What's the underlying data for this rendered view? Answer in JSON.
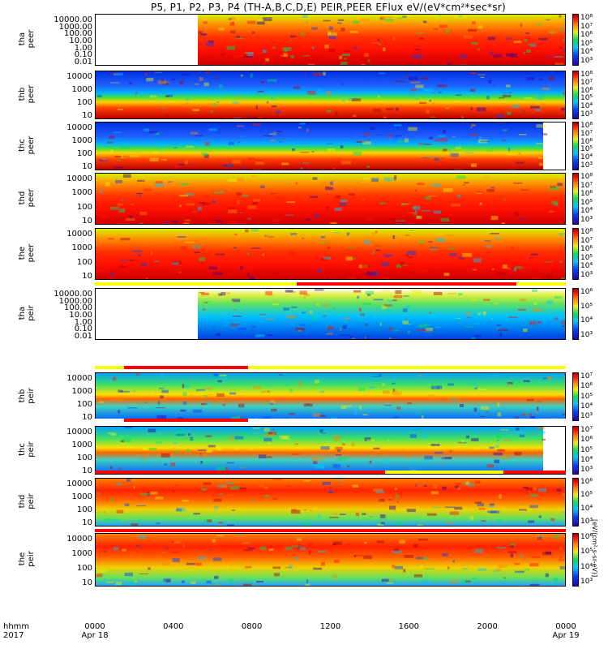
{
  "title": "P5, P1, P2, P3, P4 (TH-A,B,C,D,E) PEIR,PEER EFlux eV/(eV*cm²*sec*sr)",
  "x_axis": {
    "row1_label": "hhmm",
    "row2_label": "2017",
    "ticks": [
      {
        "time": "0000",
        "date": "Apr 18"
      },
      {
        "time": "0400",
        "date": ""
      },
      {
        "time": "0800",
        "date": ""
      },
      {
        "time": "1200",
        "date": ""
      },
      {
        "time": "1600",
        "date": ""
      },
      {
        "time": "2000",
        "date": ""
      },
      {
        "time": "0000",
        "date": "Apr 19"
      }
    ]
  },
  "colorbar_unit": "[eV/(cm²-s-sr-eV)]",
  "chart_data": {
    "type": "heatmap",
    "x_range_hours": [
      0,
      24
    ],
    "colormap": [
      "#2b00a8",
      "#0040ff",
      "#00c8ff",
      "#00e060",
      "#f0f000",
      "#ff8000",
      "#ff1000",
      "#b00000"
    ],
    "panels": [
      {
        "probe": "tha",
        "species": "peer",
        "y_ticks": [
          "10000.00",
          "1000.00",
          "100.00",
          "10.00",
          "1.00",
          "0.10",
          "0.01"
        ],
        "cb_ticks": [
          "10⁸",
          "10⁷",
          "10⁶",
          "10⁵",
          "10⁴",
          "10³"
        ],
        "data_start_h": 5.2,
        "data_end_h": 24
      },
      {
        "probe": "thb",
        "species": "peer",
        "y_ticks": [
          "10000",
          "1000",
          "100",
          "10"
        ],
        "cb_ticks": [
          "10⁸",
          "10⁷",
          "10⁶",
          "10⁵",
          "10⁴",
          "10³"
        ],
        "data_start_h": 0,
        "data_end_h": 24
      },
      {
        "probe": "thc",
        "species": "peer",
        "y_ticks": [
          "10000",
          "1000",
          "100",
          "10"
        ],
        "cb_ticks": [
          "10⁸",
          "10⁷",
          "10⁶",
          "10⁵",
          "10⁴",
          "10³"
        ],
        "data_start_h": 0,
        "data_end_h": 22.8
      },
      {
        "probe": "thd",
        "species": "peer",
        "y_ticks": [
          "10000",
          "1000",
          "100",
          "10"
        ],
        "cb_ticks": [
          "10⁸",
          "10⁷",
          "10⁶",
          "10⁵",
          "10⁴",
          "10³"
        ],
        "data_start_h": 0,
        "data_end_h": 24
      },
      {
        "probe": "the",
        "species": "peer",
        "y_ticks": [
          "10000",
          "1000",
          "100",
          "10"
        ],
        "cb_ticks": [
          "10⁸",
          "10⁷",
          "10⁶",
          "10⁵",
          "10⁴",
          "10³"
        ],
        "data_start_h": 0,
        "data_end_h": 24
      },
      {
        "probe": "tha",
        "species": "peir",
        "y_ticks": [
          "10000.00",
          "1000.00",
          "100.00",
          "10.00",
          "1.00",
          "0.10",
          "0.01"
        ],
        "cb_ticks": [
          "10⁶",
          "10⁵",
          "10⁴",
          "10³"
        ],
        "data_start_h": 5.2,
        "data_end_h": 24
      },
      {
        "probe": "thb",
        "species": "peir",
        "y_ticks": [
          "10000",
          "1000",
          "100",
          "10"
        ],
        "cb_ticks": [
          "10⁷",
          "10⁶",
          "10⁵",
          "10⁴",
          "10³"
        ],
        "data_start_h": 0,
        "data_end_h": 24
      },
      {
        "probe": "thc",
        "species": "peir",
        "y_ticks": [
          "10000",
          "1000",
          "100",
          "10"
        ],
        "cb_ticks": [
          "10⁷",
          "10⁶",
          "10⁵",
          "10⁴",
          "10³"
        ],
        "data_start_h": 0,
        "data_end_h": 22.8
      },
      {
        "probe": "thd",
        "species": "peir",
        "y_ticks": [
          "10000",
          "1000",
          "100",
          "10"
        ],
        "cb_ticks": [
          "10⁶",
          "10⁵",
          "10⁴",
          "10³"
        ],
        "data_start_h": 0,
        "data_end_h": 24
      },
      {
        "probe": "the",
        "species": "peir",
        "y_ticks": [
          "10000",
          "1000",
          "100",
          "10"
        ],
        "cb_ticks": [
          "10⁶",
          "10⁵",
          "10⁴",
          "10³"
        ],
        "data_start_h": 0,
        "data_end_h": 24
      }
    ],
    "mode_bars": [
      {
        "after_panel": 4,
        "segments": [
          {
            "start_h": 0,
            "end_h": 10.3,
            "color": "#ffff00"
          },
          {
            "start_h": 10.3,
            "end_h": 21.5,
            "color": "#ff0000"
          },
          {
            "start_h": 21.5,
            "end_h": 24,
            "color": "#ffff00"
          }
        ]
      },
      {
        "after_panel": 5,
        "segments": [
          {
            "start_h": 0,
            "end_h": 1.5,
            "color": "#ffff00"
          },
          {
            "start_h": 1.5,
            "end_h": 7.8,
            "color": "#ff0000"
          },
          {
            "start_h": 7.8,
            "end_h": 24,
            "color": "#ffff00"
          }
        ]
      },
      {
        "after_panel": 6,
        "segments": [
          {
            "start_h": 1.5,
            "end_h": 7.8,
            "color": "#ff0000"
          }
        ]
      },
      {
        "after_panel": 7,
        "segments": [
          {
            "start_h": 0,
            "end_h": 14.8,
            "color": "#ff0000"
          },
          {
            "start_h": 14.8,
            "end_h": 20.8,
            "color": "#ffff00"
          },
          {
            "start_h": 20.8,
            "end_h": 24,
            "color": "#ff0000"
          }
        ]
      },
      {
        "after_panel": 8,
        "segments": [
          {
            "start_h": 0,
            "end_h": 24,
            "color": "#ff0000"
          }
        ]
      }
    ]
  }
}
